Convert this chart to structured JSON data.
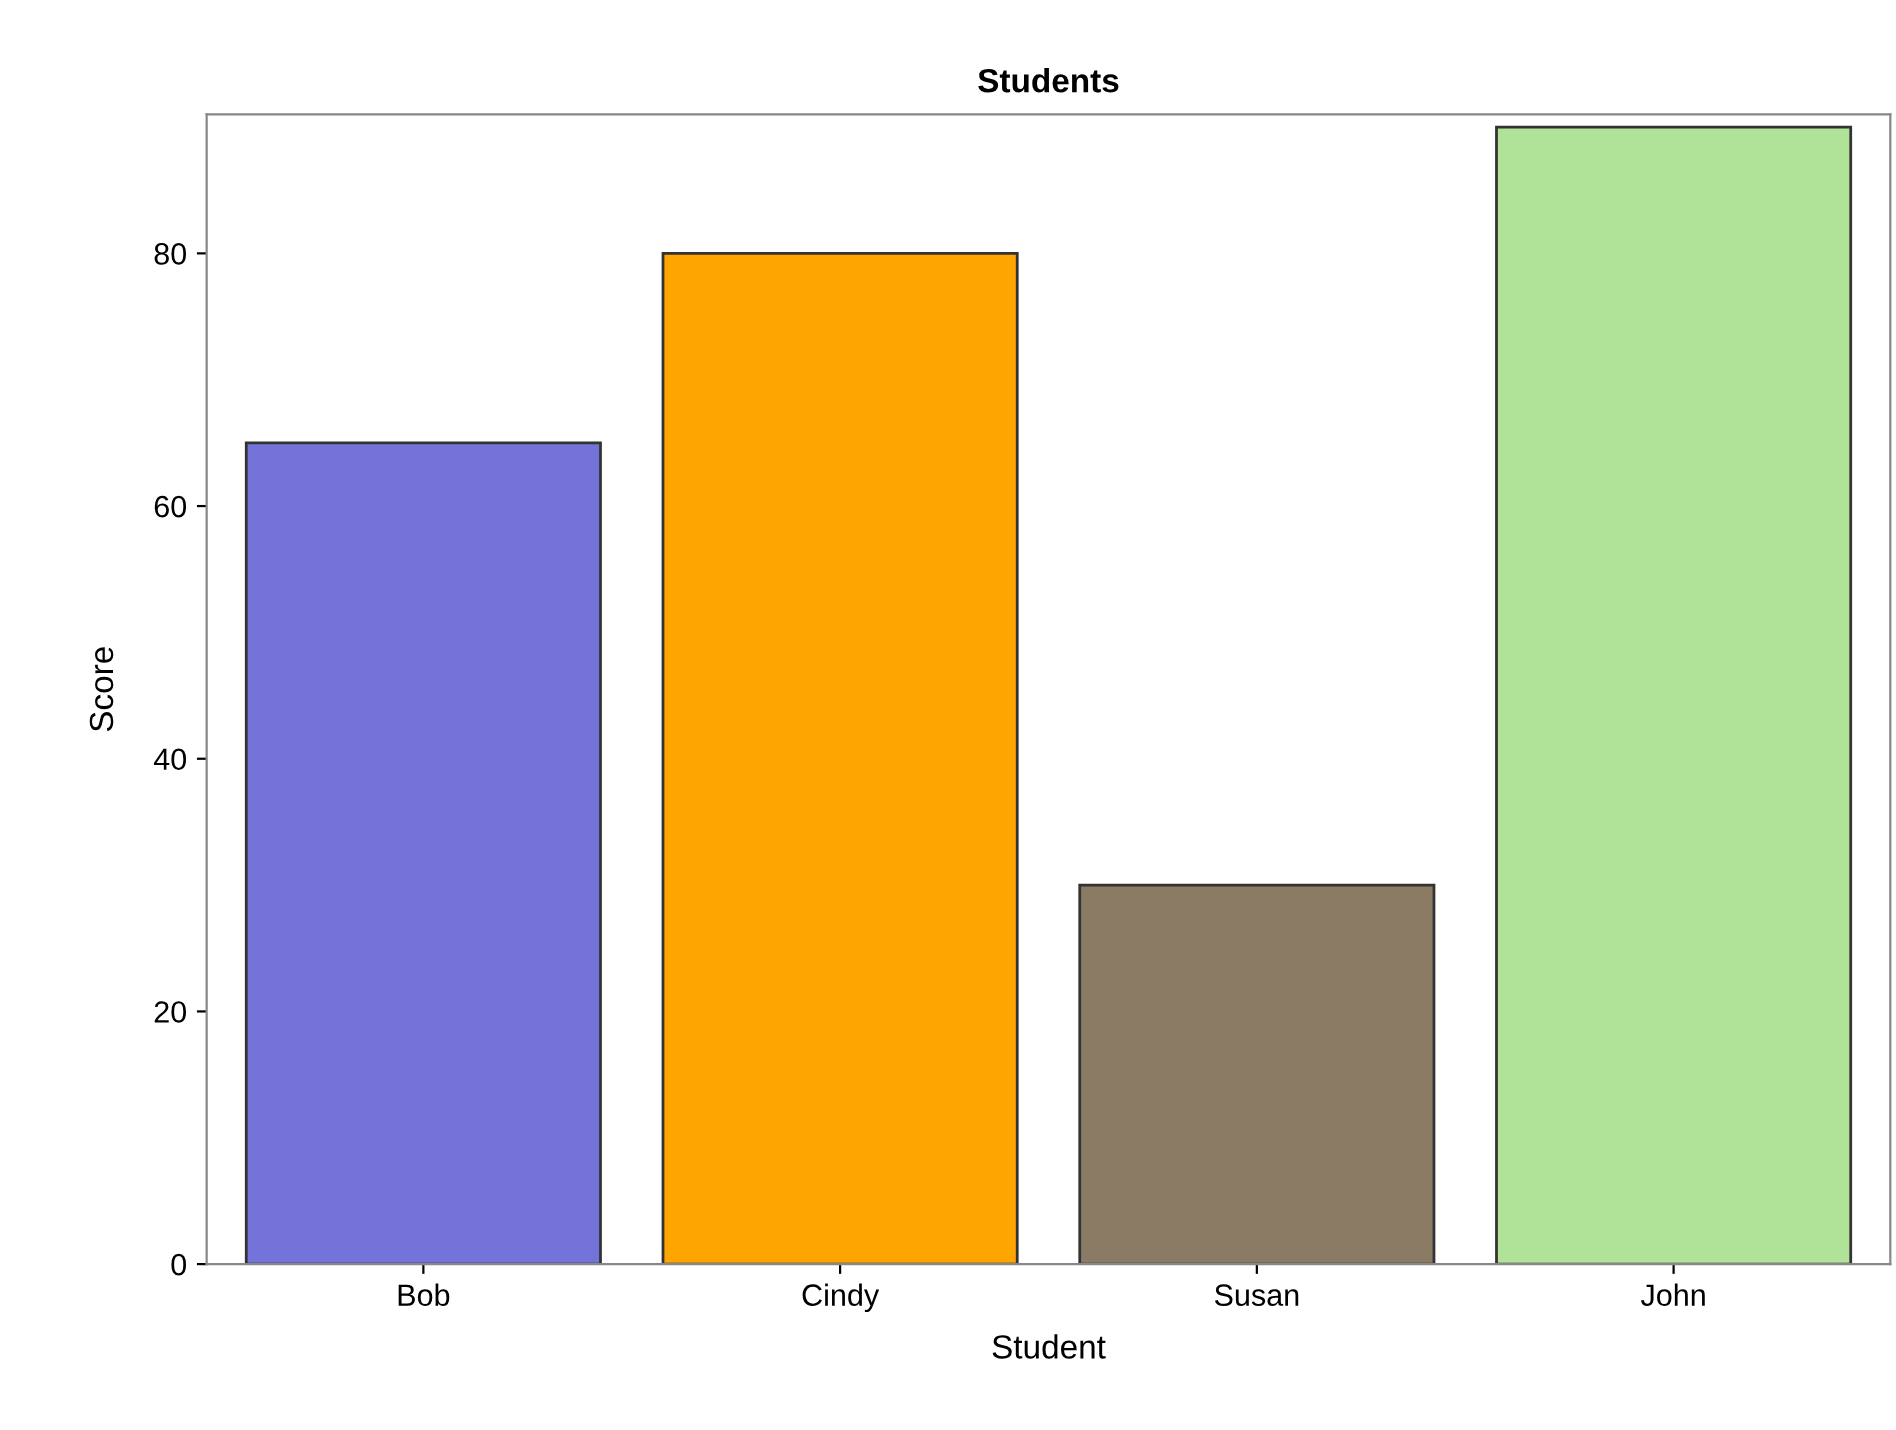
{
  "chart_data": {
    "type": "bar",
    "title": "Students",
    "xlabel": "Student",
    "ylabel": "Score",
    "categories": [
      "Bob",
      "Cindy",
      "Susan",
      "John"
    ],
    "values": [
      65,
      80,
      30,
      90
    ],
    "colors": [
      "#7373d9",
      "#ffa500",
      "#8b7b65",
      "#b0e298"
    ],
    "ylim": [
      0,
      91
    ],
    "yticks": [
      0,
      20,
      40,
      60,
      80
    ],
    "grid": false
  }
}
